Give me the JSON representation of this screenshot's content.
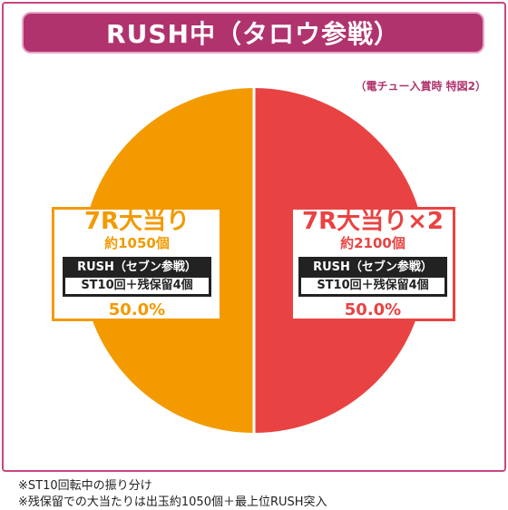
{
  "header": {
    "title": "RUSH中（タロウ参戦）",
    "note": "（電チュー入賞時 特図2）"
  },
  "chart_data": {
    "type": "pie",
    "title": "RUSH中（タロウ参戦）",
    "slices": [
      {
        "label": "7R大当り",
        "sub": "約1050個",
        "tag1": "RUSH（セブン参戦）",
        "tag2": "ST10回＋残保留4個",
        "value": 50.0,
        "pct_label": "50.0%",
        "color": "#f39a00"
      },
      {
        "label": "7R大当り×2",
        "sub": "約2100個",
        "tag1": "RUSH（セブン参戦）",
        "tag2": "ST10回＋残保留4個",
        "value": 50.0,
        "pct_label": "50.0%",
        "color": "#e84342"
      }
    ]
  },
  "footnotes": [
    "※ST10回転中の振り分け",
    "※残保留での大当たりは出玉約1050個＋最上位RUSH突入"
  ]
}
